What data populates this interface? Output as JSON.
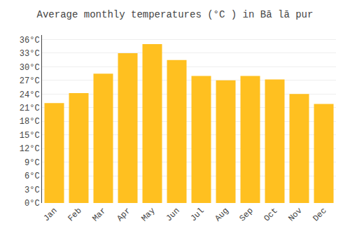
{
  "chart_data": {
    "type": "bar",
    "title": "Average monthly temperatures (°C ) in Bā lā pur",
    "categories": [
      "Jan",
      "Feb",
      "Mar",
      "Apr",
      "May",
      "Jun",
      "Jul",
      "Aug",
      "Sep",
      "Oct",
      "Nov",
      "Dec"
    ],
    "values": [
      22,
      24.2,
      28.5,
      33,
      35,
      31.5,
      28,
      27,
      28,
      27.2,
      24,
      21.8
    ],
    "color": "#FFC020",
    "ylim": [
      0,
      37
    ],
    "yticks": [
      {
        "value": 0,
        "label": "0°C"
      },
      {
        "value": 3,
        "label": "3°C"
      },
      {
        "value": 6,
        "label": "6°C"
      },
      {
        "value": 9,
        "label": "9°C"
      },
      {
        "value": 12,
        "label": "12°C"
      },
      {
        "value": 15,
        "label": "15°C"
      },
      {
        "value": 18,
        "label": "18°C"
      },
      {
        "value": 21,
        "label": "21°C"
      },
      {
        "value": 24,
        "label": "24°C"
      },
      {
        "value": 27,
        "label": "27°C"
      },
      {
        "value": 30,
        "label": "30°C"
      },
      {
        "value": 33,
        "label": "33°C"
      },
      {
        "value": 36,
        "label": "36°C"
      }
    ],
    "grid": true
  }
}
